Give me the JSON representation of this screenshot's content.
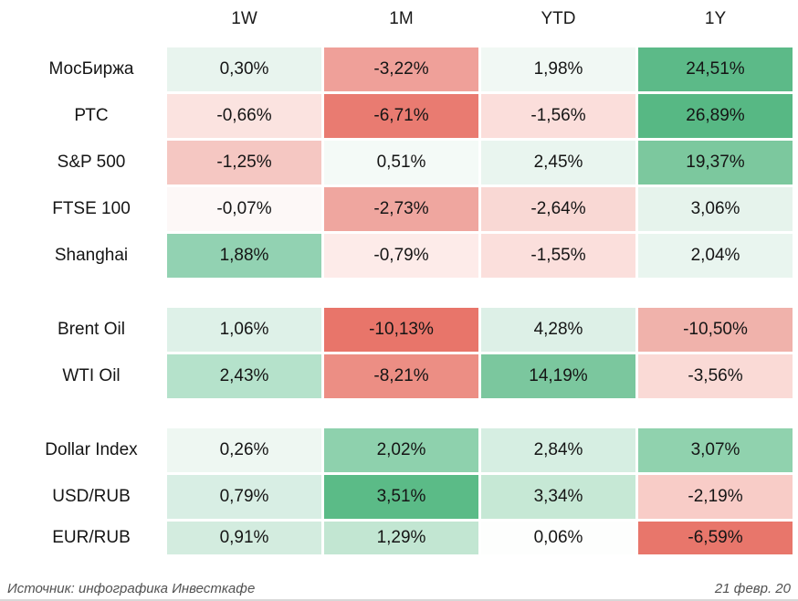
{
  "footer": {
    "source": "Источник: инфографика Инвесткафе",
    "date": "21 февр. 20"
  },
  "palette": {
    "background": "#ffffff",
    "max_positive_green": "#57b884",
    "max_negative_red": "#e8756a",
    "bottom_rule": "#d8d8d8"
  },
  "chart_data": {
    "type": "heatmap",
    "columns": [
      "1W",
      "1M",
      "YTD",
      "1Y"
    ],
    "value_unit": "percent",
    "decimal_separator": ",",
    "legend": "none",
    "groups": [
      {
        "rows": [
          {
            "label": "МосБиржа",
            "values": [
              0.3,
              -3.22,
              1.98,
              24.51
            ],
            "display": [
              "0,30%",
              "-3,22%",
              "1,98%",
              "24,51%"
            ],
            "colors": [
              "#e8f4ee",
              "#efa099",
              "#f1f8f4",
              "#5cba88"
            ]
          },
          {
            "label": "РТС",
            "values": [
              -0.66,
              -6.71,
              -1.56,
              26.89
            ],
            "display": [
              "-0,66%",
              "-6,71%",
              "-1,56%",
              "26,89%"
            ],
            "colors": [
              "#fbe3e0",
              "#e97b71",
              "#fbdedb",
              "#57b884"
            ]
          },
          {
            "label": "S&P 500",
            "values": [
              -1.25,
              0.51,
              2.45,
              19.37
            ],
            "display": [
              "-1,25%",
              "0,51%",
              "2,45%",
              "19,37%"
            ],
            "colors": [
              "#f5c7c2",
              "#f4faf7",
              "#e9f5ef",
              "#7cc89e"
            ]
          },
          {
            "label": "FTSE 100",
            "values": [
              -0.07,
              -2.73,
              -2.64,
              3.06
            ],
            "display": [
              "-0,07%",
              "-2,73%",
              "-2,64%",
              "3,06%"
            ],
            "colors": [
              "#fdf8f7",
              "#efa69f",
              "#f9d8d4",
              "#e6f3ec"
            ]
          },
          {
            "label": "Shanghai",
            "values": [
              1.88,
              -0.79,
              -1.55,
              2.04
            ],
            "display": [
              "1,88%",
              "-0,79%",
              "-1,55%",
              "2,04%"
            ],
            "colors": [
              "#92d2b2",
              "#fdebe9",
              "#fbdfdc",
              "#e9f5ef"
            ]
          }
        ]
      },
      {
        "rows": [
          {
            "label": "Brent Oil",
            "values": [
              1.06,
              -10.13,
              4.28,
              -10.5
            ],
            "display": [
              "1,06%",
              "-10,13%",
              "4,28%",
              "-10,50%"
            ],
            "colors": [
              "#def1e8",
              "#e8756a",
              "#ddf0e7",
              "#f0b2ab"
            ]
          },
          {
            "label": "WTI Oil",
            "values": [
              2.43,
              -8.21,
              14.19,
              -3.56
            ],
            "display": [
              "2,43%",
              "-8,21%",
              "14,19%",
              "-3,56%"
            ],
            "colors": [
              "#b5e2cb",
              "#ec8e84",
              "#7bc79e",
              "#fadad6"
            ]
          }
        ]
      },
      {
        "rows": [
          {
            "label": "Dollar Index",
            "values": [
              0.26,
              2.02,
              2.84,
              3.07
            ],
            "display": [
              "0,26%",
              "2,02%",
              "2,84%",
              "3,07%"
            ],
            "colors": [
              "#eef7f2",
              "#8ed1ad",
              "#d6eee2",
              "#90d2ae"
            ]
          },
          {
            "label": "USD/RUB",
            "values": [
              0.79,
              3.51,
              3.34,
              -2.19
            ],
            "display": [
              "0,79%",
              "3,51%",
              "3,34%",
              "-2,19%"
            ],
            "colors": [
              "#d8eee4",
              "#5bbb87",
              "#c6e8d5",
              "#f8ccc7"
            ]
          },
          {
            "label": "EUR/RUB",
            "values": [
              0.91,
              1.29,
              0.06,
              -6.59
            ],
            "display": [
              "0,91%",
              "1,29%",
              "0,06%",
              "-6,59%"
            ],
            "colors": [
              "#d3ecdf",
              "#c2e6d2",
              "#fdfefd",
              "#e8766b"
            ]
          }
        ]
      }
    ]
  }
}
